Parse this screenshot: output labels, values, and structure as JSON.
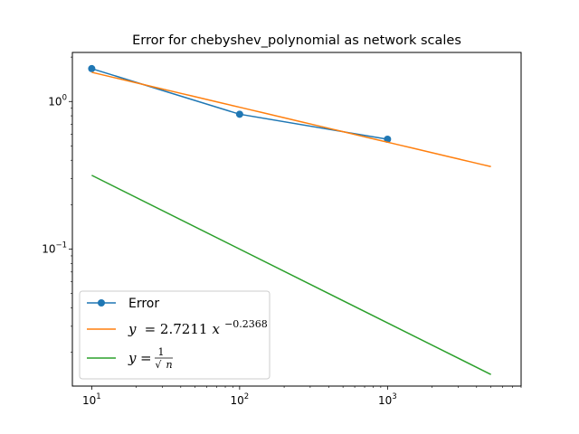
{
  "chart_data": {
    "type": "line",
    "title": "Error for chebyshev_polynomial as network scales",
    "xlabel": "",
    "ylabel": "",
    "xscale": "log",
    "yscale": "log",
    "xlim": [
      7.4,
      8000
    ],
    "ylim": [
      0.0118,
      2.15
    ],
    "x_ticks": [
      {
        "value": 10,
        "base": "10",
        "exp": "1"
      },
      {
        "value": 100,
        "base": "10",
        "exp": "2"
      },
      {
        "value": 1000,
        "base": "10",
        "exp": "3"
      }
    ],
    "y_ticks": [
      {
        "value": 1,
        "base": "10",
        "exp": "0"
      },
      {
        "value": 0.1,
        "base": "10",
        "exp": "−1"
      }
    ],
    "grid": false,
    "legend_position": "lower-left",
    "series": [
      {
        "name": "Error",
        "color": "#1f77b4",
        "marker": "circle",
        "x": [
          10,
          100,
          1000
        ],
        "y": [
          1.67,
          0.82,
          0.555
        ]
      },
      {
        "name": "y = 2.7211x^{-0.2368}",
        "color": "#ff7f0e",
        "marker": "none",
        "fit": {
          "a": 2.7211,
          "b": -0.2368
        },
        "x": [
          10,
          5000
        ],
        "y": [
          1.575,
          0.361
        ]
      },
      {
        "name": "y = 1/√n",
        "color": "#2ca02c",
        "marker": "none",
        "x": [
          10,
          5000
        ],
        "y": [
          0.3162,
          0.01414
        ]
      }
    ],
    "legend": {
      "error_label": "Error",
      "fit_prefix": "y",
      "fit_eq": "= 2.7211",
      "fit_var": "x",
      "fit_exp": "−0.2368",
      "ref_prefix": "y",
      "ref_eq": "=",
      "ref_num": "1",
      "ref_den_root": "√",
      "ref_den_var": "n"
    }
  }
}
